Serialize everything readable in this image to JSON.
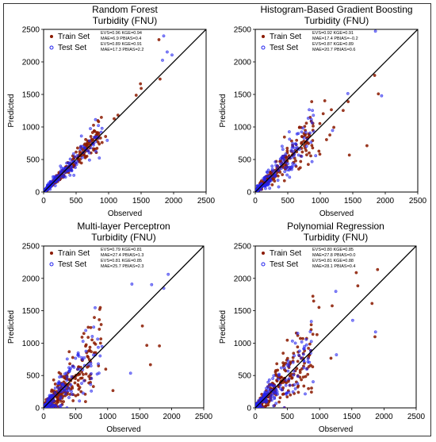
{
  "chart_data": [
    {
      "type": "scatter",
      "title": "Random Forest",
      "subtitle": "Turbidity (FNU)",
      "xlabel": "Observed",
      "ylabel": "Predicted",
      "xlim": [
        0,
        2500
      ],
      "ylim": [
        0,
        2500
      ],
      "ticks": [
        "0",
        "500",
        "1000",
        "1500",
        "2000",
        "2500"
      ],
      "legend_position": "top-left",
      "series": [
        {
          "name": "Train Set",
          "color": "#8b1a00",
          "metrics": [
            "EVS=0.96 KGE=0.94",
            "MAE=6.9 PBIAS=0.4"
          ],
          "spread": 0.12
        },
        {
          "name": "Test Set",
          "color": "#2222ee",
          "metrics": [
            "EVS=0.89 KGE=0.91",
            "MAE=17.3 PBIAS=2.2"
          ],
          "spread": 0.2
        }
      ],
      "identity_line": true
    },
    {
      "type": "scatter",
      "title": "Histogram-Based Gradient Boosting",
      "subtitle": "Turbidity (FNU)",
      "xlabel": "Observed",
      "ylabel": "Predicted",
      "xlim": [
        0,
        2500
      ],
      "ylim": [
        0,
        2500
      ],
      "ticks": [
        "0",
        "500",
        "1000",
        "1500",
        "2000",
        "2500"
      ],
      "legend_position": "top-left",
      "series": [
        {
          "name": "Train Set",
          "color": "#8b1a00",
          "metrics": [
            "EVS=0.92 KGE=0.91",
            "MAE=17.4 PBIAS=−0.2"
          ],
          "spread": 0.22
        },
        {
          "name": "Test Set",
          "color": "#2222ee",
          "metrics": [
            "EVS=0.87 KGE=0.89",
            "MAE=20.7 PBIAS=0.6"
          ],
          "spread": 0.26
        }
      ],
      "identity_line": true
    },
    {
      "type": "scatter",
      "title": "Multi-layer Perceptron",
      "subtitle": "Turbidity (FNU)",
      "xlabel": "Observed",
      "ylabel": "Predicted",
      "xlim": [
        0,
        2500
      ],
      "ylim": [
        0,
        2500
      ],
      "ticks": [
        "0",
        "500",
        "1000",
        "1500",
        "2000",
        "2500"
      ],
      "legend_position": "top-left",
      "series": [
        {
          "name": "Train Set",
          "color": "#8b1a00",
          "metrics": [
            "EVS=0.79 KGE=0.81",
            "MAE=27.4 PBIAS=1.3"
          ],
          "spread": 0.4
        },
        {
          "name": "Test Set",
          "color": "#2222ee",
          "metrics": [
            "EVS=0.81 KGE=0.85",
            "MAE=25.7 PBIAS=2.3"
          ],
          "spread": 0.38
        }
      ],
      "identity_line": true
    },
    {
      "type": "scatter",
      "title": "Polynomial Regression",
      "subtitle": "Turbidity (FNU)",
      "xlabel": "Observed",
      "ylabel": "Predicted",
      "xlim": [
        0,
        2500
      ],
      "ylim": [
        0,
        2500
      ],
      "ticks": [
        "0",
        "500",
        "1000",
        "1500",
        "2000",
        "2500"
      ],
      "legend_position": "top-left",
      "series": [
        {
          "name": "Train Set",
          "color": "#8b1a00",
          "metrics": [
            "EVS=0.80 KGE=0.85",
            "MAE=27.8 PBIAS=0.0"
          ],
          "spread": 0.38
        },
        {
          "name": "Test Set",
          "color": "#2222ee",
          "metrics": [
            "EVS=0.81 KGE=0.88",
            "MAE=28.1 PBIAS=0.4"
          ],
          "spread": 0.36
        }
      ],
      "identity_line": true
    }
  ]
}
